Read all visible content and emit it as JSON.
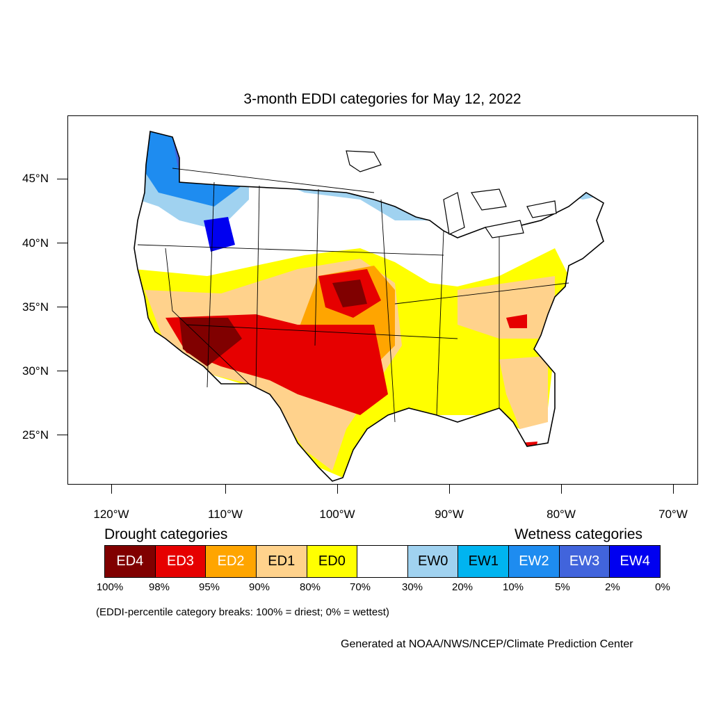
{
  "title": "3-month EDDI categories for May 12, 2022",
  "map": {
    "lat_labels": [
      "45°N",
      "40°N",
      "35°N",
      "30°N",
      "25°N"
    ],
    "lon_labels": [
      "120°W",
      "110°W",
      "100°W",
      "90°W",
      "80°W",
      "70°W"
    ]
  },
  "legend": {
    "drought_heading": "Drought categories",
    "wetness_heading": "Wetness categories",
    "categories": [
      {
        "label": "ED4",
        "color": "#800000",
        "text_color": "#ffffff"
      },
      {
        "label": "ED3",
        "color": "#e60000",
        "text_color": "#ffffff"
      },
      {
        "label": "ED2",
        "color": "#ffa500",
        "text_color": "#ffffff"
      },
      {
        "label": "ED1",
        "color": "#ffd28c",
        "text_color": "#000000"
      },
      {
        "label": "ED0",
        "color": "#ffff00",
        "text_color": "#000000"
      },
      {
        "label": "",
        "color": "#ffffff",
        "text_color": "#000000"
      },
      {
        "label": "EW0",
        "color": "#a0d2f0",
        "text_color": "#000000"
      },
      {
        "label": "EW1",
        "color": "#00b4f0",
        "text_color": "#000000"
      },
      {
        "label": "EW2",
        "color": "#1e8cf0",
        "text_color": "#ffffff"
      },
      {
        "label": "EW3",
        "color": "#4164dc",
        "text_color": "#ffffff"
      },
      {
        "label": "EW4",
        "color": "#0000f0",
        "text_color": "#ffffff"
      }
    ],
    "breaks": [
      "100%",
      "98%",
      "95%",
      "90%",
      "80%",
      "70%",
      "30%",
      "20%",
      "10%",
      "5%",
      "2%",
      "0%"
    ]
  },
  "note": "(EDDI-percentile category breaks: 100% = driest; 0% = wettest)",
  "credit": "Generated at NOAA/NWS/NCEP/Climate Prediction Center"
}
